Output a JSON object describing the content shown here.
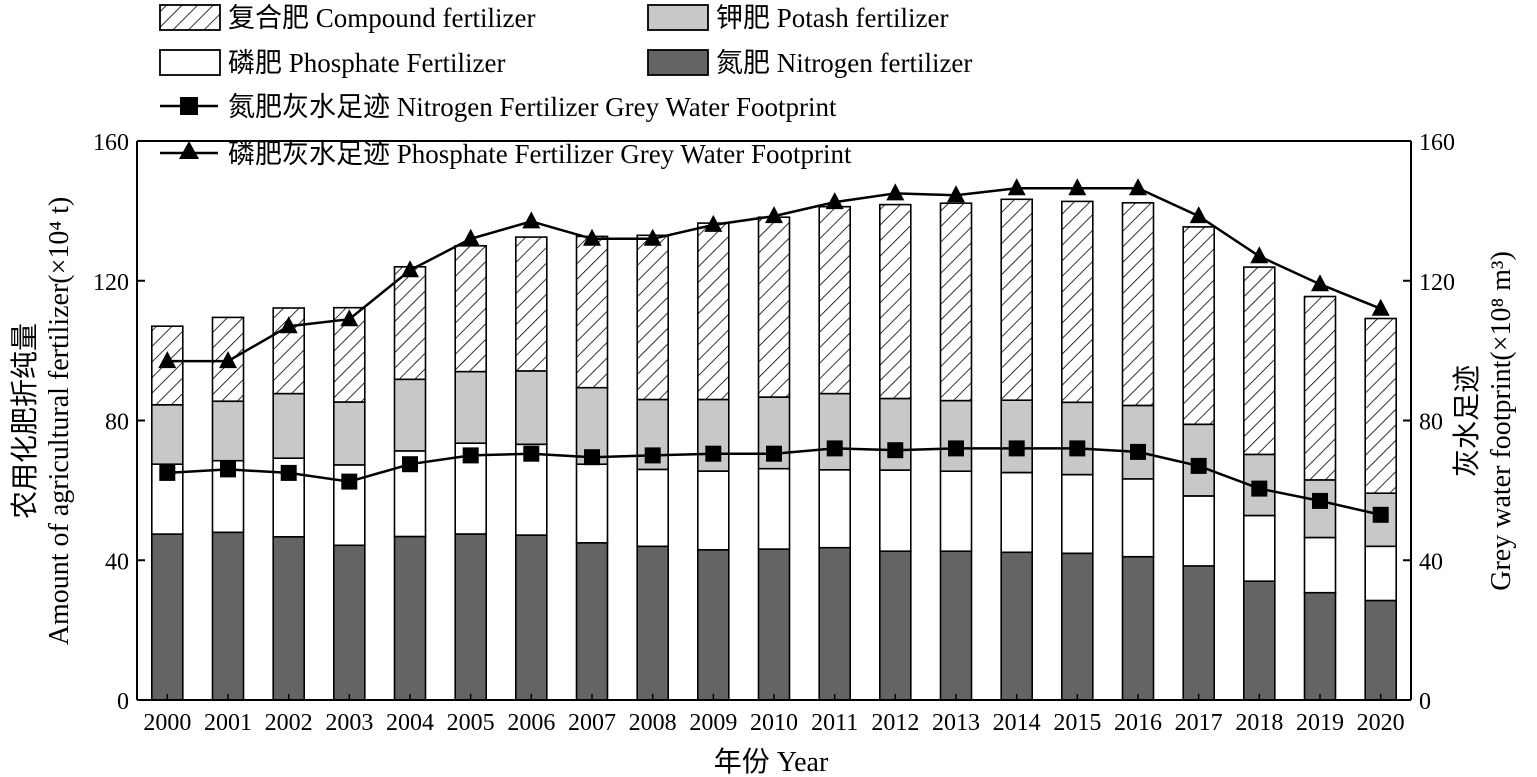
{
  "chart_data": {
    "type": "bar",
    "stacked": true,
    "categories": [
      "2000",
      "2001",
      "2002",
      "2003",
      "2004",
      "2005",
      "2006",
      "2007",
      "2008",
      "2009",
      "2010",
      "2011",
      "2012",
      "2013",
      "2014",
      "2015",
      "2016",
      "2017",
      "2018",
      "2019",
      "2020"
    ],
    "series": [
      {
        "key": "nitrogen",
        "name": "氮肥 Nitrogen fertilizer",
        "kind": "bar",
        "fill": "#646464",
        "values": [
          47.5,
          48,
          46.7,
          44.3,
          46.8,
          47.5,
          47.2,
          45,
          44,
          43,
          43.2,
          43.6,
          42.6,
          42.6,
          42.3,
          42,
          41,
          38.4,
          34,
          30.7,
          28.5
        ]
      },
      {
        "key": "phosphate",
        "name": "磷肥 Phosphate Fertilizer",
        "kind": "bar",
        "fill": "#ffffff",
        "values": [
          20,
          20.5,
          22.5,
          23,
          24.5,
          26,
          26,
          22.5,
          22,
          22.5,
          23,
          22.3,
          23.2,
          22.9,
          22.8,
          22.5,
          22.3,
          20,
          18.8,
          15.8,
          15.5
        ]
      },
      {
        "key": "potash",
        "name": "钾肥 Potash fertilizer",
        "kind": "bar",
        "fill": "#c8c8c8",
        "values": [
          17,
          17,
          18.5,
          18,
          20.5,
          20.5,
          21,
          21.9,
          20,
          20.5,
          20.5,
          21.8,
          20.5,
          20.2,
          20.7,
          20.7,
          21,
          20.5,
          17.5,
          16.5,
          15.2
        ]
      },
      {
        "key": "compound",
        "name": "复合肥 Compound fertilizer",
        "kind": "bar",
        "fill": "hatch",
        "values": [
          22.5,
          24,
          24.5,
          27,
          32.2,
          36,
          38.3,
          43.3,
          47,
          50.5,
          51.5,
          53.5,
          55.5,
          56.5,
          57.5,
          57.5,
          58,
          56.5,
          53.6,
          52.5,
          50
        ]
      },
      {
        "key": "nitrogen_gwf",
        "name": "氮肥灰水足迹 Nitrogen Fertilizer Grey Water Footprint",
        "kind": "line",
        "marker": "square",
        "axis": "right",
        "values": [
          65,
          66,
          65,
          62.5,
          67.5,
          70,
          70.5,
          69.5,
          70,
          70.5,
          70.5,
          72,
          71.5,
          72,
          72,
          72,
          71,
          67,
          60.5,
          57,
          53
        ]
      },
      {
        "key": "phosphate_gwf",
        "name": "磷肥灰水足迹 Phosphate Fertilizer Grey Water Footprint",
        "kind": "line",
        "marker": "triangle",
        "axis": "right",
        "values": [
          97,
          97,
          107,
          109,
          123,
          132,
          137,
          132,
          132,
          136,
          138.5,
          142.5,
          145,
          144.5,
          146.5,
          146.5,
          146.5,
          138.5,
          127,
          119,
          112
        ]
      }
    ],
    "xlabel": "年份 Year",
    "ylabel_cn": "农用化肥折纯量",
    "ylabel_en": "Amount of agricultural fertilizer(×10⁴ t)",
    "y2label_cn": "灰水足迹",
    "y2label_en": "Grey water footprint(×10⁸ m³)",
    "ylim": [
      0,
      160
    ],
    "y2lim": [
      0,
      160
    ],
    "yticks": [
      0,
      40,
      80,
      120,
      160
    ],
    "y2ticks": [
      0,
      40,
      80,
      120,
      160
    ],
    "legend_position": "top-left"
  }
}
